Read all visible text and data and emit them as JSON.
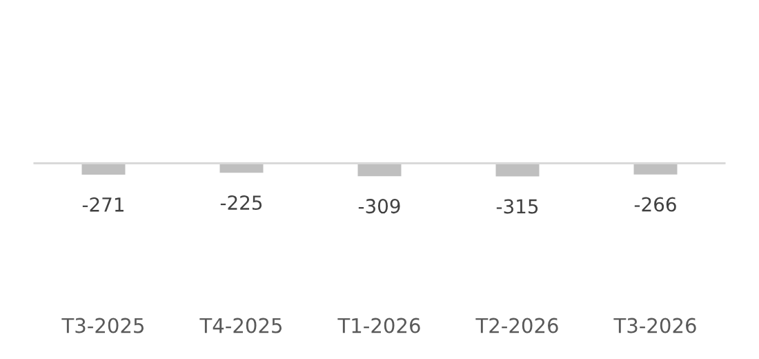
{
  "chart_data": {
    "type": "bar",
    "categories": [
      "T3-2025",
      "T4-2025",
      "T1-2026",
      "T2-2026",
      "T3-2026"
    ],
    "values": [
      -271,
      -225,
      -309,
      -315,
      -266
    ],
    "color": "#bfbfbf",
    "data_labels": true,
    "tick_labels": "x"
  }
}
